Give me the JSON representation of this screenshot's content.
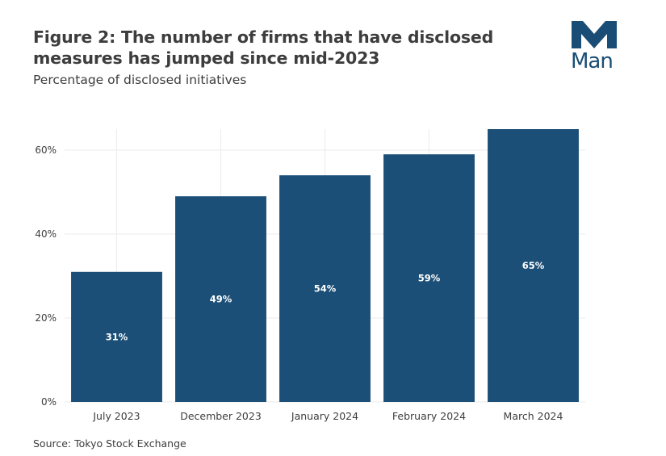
{
  "header": {
    "title": "Figure 2: The number of firms that have disclosed measures has jumped since mid-2023",
    "subtitle": "Percentage of disclosed initiatives",
    "logo_text": "Man"
  },
  "footer": {
    "source": "Source: Tokyo Stock Exchange"
  },
  "colors": {
    "bar": "#1b4f77",
    "logo": "#1a4d75",
    "grid": "#ebebeb",
    "text": "#3d3d3d"
  },
  "chart_data": {
    "type": "bar",
    "title": "Figure 2: The number of firms that have disclosed measures has jumped since mid-2023",
    "subtitle": "Percentage of disclosed initiatives",
    "categories": [
      "July 2023",
      "December 2023",
      "January 2024",
      "February 2024",
      "March 2024"
    ],
    "values": [
      31,
      49,
      54,
      59,
      65
    ],
    "data_labels": [
      "31%",
      "49%",
      "54%",
      "59%",
      "65%"
    ],
    "yticks": [
      0,
      20,
      40,
      60
    ],
    "ytick_labels": [
      "0%",
      "20%",
      "40%",
      "60%"
    ],
    "ylim": [
      0,
      65
    ],
    "xlabel": "",
    "ylabel": "",
    "grid": true,
    "legend": "none"
  }
}
